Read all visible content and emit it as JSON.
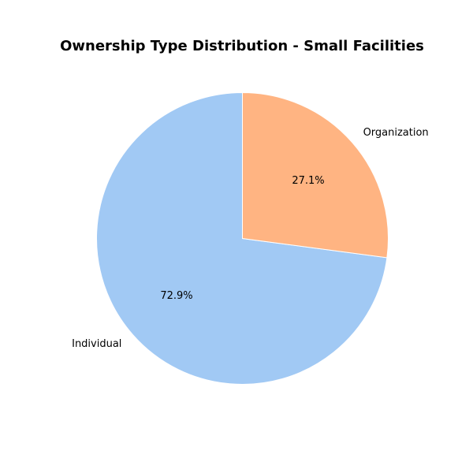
{
  "chart_data": {
    "type": "pie",
    "title": "Ownership Type Distribution - Small Facilities",
    "labels": [
      "Individual",
      "Organization"
    ],
    "values": [
      72.9,
      27.1
    ],
    "percent_labels": [
      "72.9%",
      "27.1%"
    ],
    "colors": [
      "#a1c9f4",
      "#ffb482"
    ],
    "start_angle_deg": 90,
    "direction": "counterclockwise",
    "legend": "none"
  }
}
